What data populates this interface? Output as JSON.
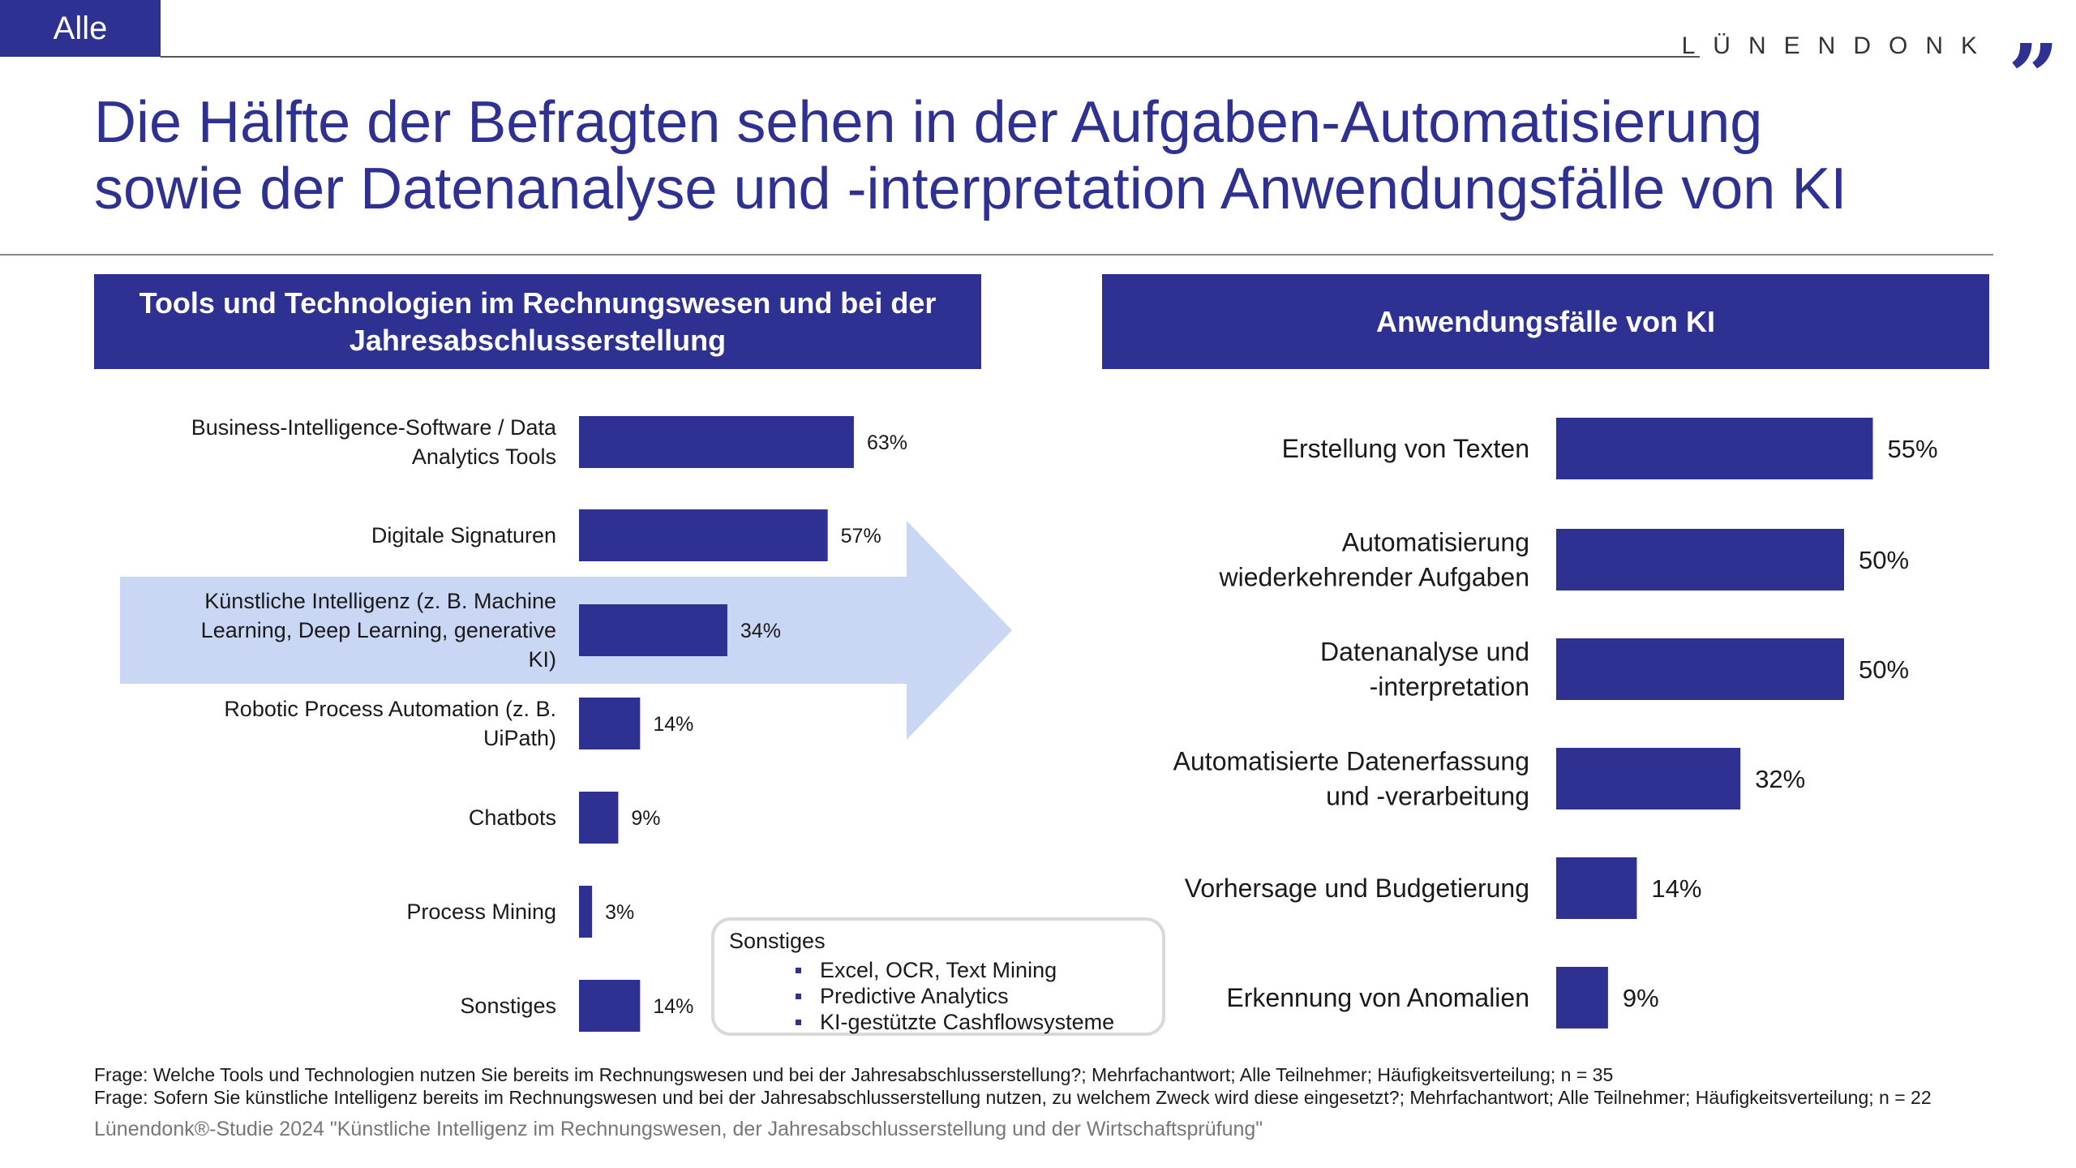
{
  "header": {
    "tag": "Alle",
    "logo_text": "LÜNENDONK",
    "logo_mark": "”",
    "title_line1": "Die Hälfte der Befragten sehen in der Aufgaben-Automatisierung",
    "title_line2": "sowie der Datenanalyse und -interpretation Anwendungsfälle von KI"
  },
  "left_panel": {
    "title_line1": "Tools und Technologien im Rechnungswesen und bei der",
    "title_line2": "Jahresabschlusserstellung"
  },
  "right_panel": {
    "title": "Anwendungsfälle von KI"
  },
  "other_box": {
    "title": "Sonstiges",
    "items": [
      "Excel, OCR, Text Mining",
      "Predictive Analytics",
      "KI-gestützte Cashflowsysteme"
    ]
  },
  "footer": {
    "note1": "Frage: Welche Tools und Technologien nutzen Sie bereits im Rechnungswesen und bei der Jahresabschlusserstellung?; Mehrfachantwort; Alle Teilnehmer; Häufigkeitsverteilung; n = 35",
    "note2": "Frage: Sofern Sie künstliche Intelligenz bereits im Rechnungswesen und bei der Jahresabschlusserstellung nutzen, zu welchem Zweck wird diese eingesetzt?; Mehrfachantwort; Alle Teilnehmer; Häufigkeitsverteilung; n = 22",
    "source": "Lünendonk®-Studie 2024 \"Künstliche Intelligenz im Rechnungswesen, der Jahresabschlusserstellung und der Wirtschaftsprüfung\""
  },
  "colors": {
    "bar": "#2e3192",
    "highlight": "#c9d7f5",
    "text": "#1a1a1a"
  },
  "chart_data": [
    {
      "type": "bar",
      "orientation": "horizontal",
      "categories": [
        [
          "Business-Intelligence-Software / Data",
          "Analytics Tools"
        ],
        [
          "Digitale Signaturen"
        ],
        [
          "Künstliche Intelligenz (z. B. Machine",
          "Learning, Deep Learning, generative",
          "KI)"
        ],
        [
          "Robotic Process Automation (z. B.",
          "UiPath)"
        ],
        [
          "Chatbots"
        ],
        [
          "Process Mining"
        ],
        [
          "Sonstiges"
        ]
      ],
      "values": [
        63,
        57,
        34,
        14,
        9,
        3,
        14
      ],
      "value_labels": [
        "63%",
        "57%",
        "34%",
        "14%",
        "9%",
        "3%",
        "14%"
      ],
      "highlight_index": 2,
      "xlim": [
        0,
        100
      ],
      "grid": false,
      "legend": "none"
    },
    {
      "type": "bar",
      "orientation": "horizontal",
      "categories": [
        [
          "Erstellung von Texten"
        ],
        [
          "Automatisierung",
          "wiederkehrender Aufgaben"
        ],
        [
          "Datenanalyse und",
          "-interpretation"
        ],
        [
          "Automatisierte Datenerfassung",
          "und -verarbeitung"
        ],
        [
          "Vorhersage und Budgetierung"
        ],
        [
          "Erkennung von Anomalien"
        ]
      ],
      "values": [
        55,
        50,
        50,
        32,
        14,
        9
      ],
      "value_labels": [
        "55%",
        "50%",
        "50%",
        "32%",
        "14%",
        "9%"
      ],
      "xlim": [
        0,
        100
      ],
      "grid": false,
      "legend": "none"
    }
  ]
}
